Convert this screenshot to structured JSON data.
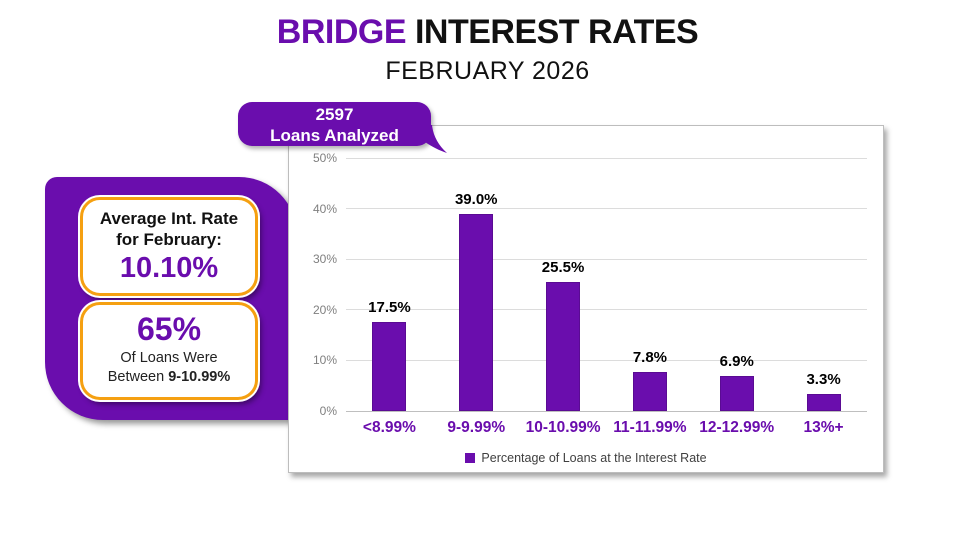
{
  "header": {
    "title_accent": "BRIDGE",
    "title_rest": "INTEREST RATES",
    "subtitle": "FEBRUARY 2026"
  },
  "badge": {
    "count": "2597",
    "label": "Loans Analyzed"
  },
  "info_cards": {
    "average_rate": {
      "label_line1": "Average Int. Rate",
      "label_line2": "for February:",
      "value": "10.10%"
    },
    "majority_share": {
      "value": "65%",
      "line1": "Of Loans Were",
      "line2_prefix": "Between",
      "line2_bold": "9-10.99%"
    }
  },
  "colors": {
    "purple": "#6A0DAD",
    "orange": "#F5A011",
    "grid": "#DCDCDC",
    "axis": "#BFBFBF",
    "tick_text": "#7F7F7F",
    "legend_text": "#3F3F3F",
    "data_label": "#000000"
  },
  "chart_data": {
    "type": "bar",
    "title": "Bridge Interest Rates - February 2026",
    "categories": [
      "<8.99%",
      "9-9.99%",
      "10-10.99%",
      "11-11.99%",
      "12-12.99%",
      "13%+"
    ],
    "values": [
      17.5,
      39.0,
      25.5,
      7.8,
      6.9,
      3.3
    ],
    "value_labels": [
      "17.5%",
      "39.0%",
      "25.5%",
      "7.8%",
      "6.9%",
      "3.3%"
    ],
    "xlabel": "",
    "ylabel": "",
    "ylim": [
      0,
      50
    ],
    "ytick_values": [
      0,
      10,
      20,
      30,
      40,
      50
    ],
    "ytick_labels": [
      "0%",
      "10%",
      "20%",
      "30%",
      "40%",
      "50%"
    ],
    "grid": true,
    "legend": {
      "label": "Percentage of Loans at the Interest Rate",
      "position": "bottom"
    }
  }
}
